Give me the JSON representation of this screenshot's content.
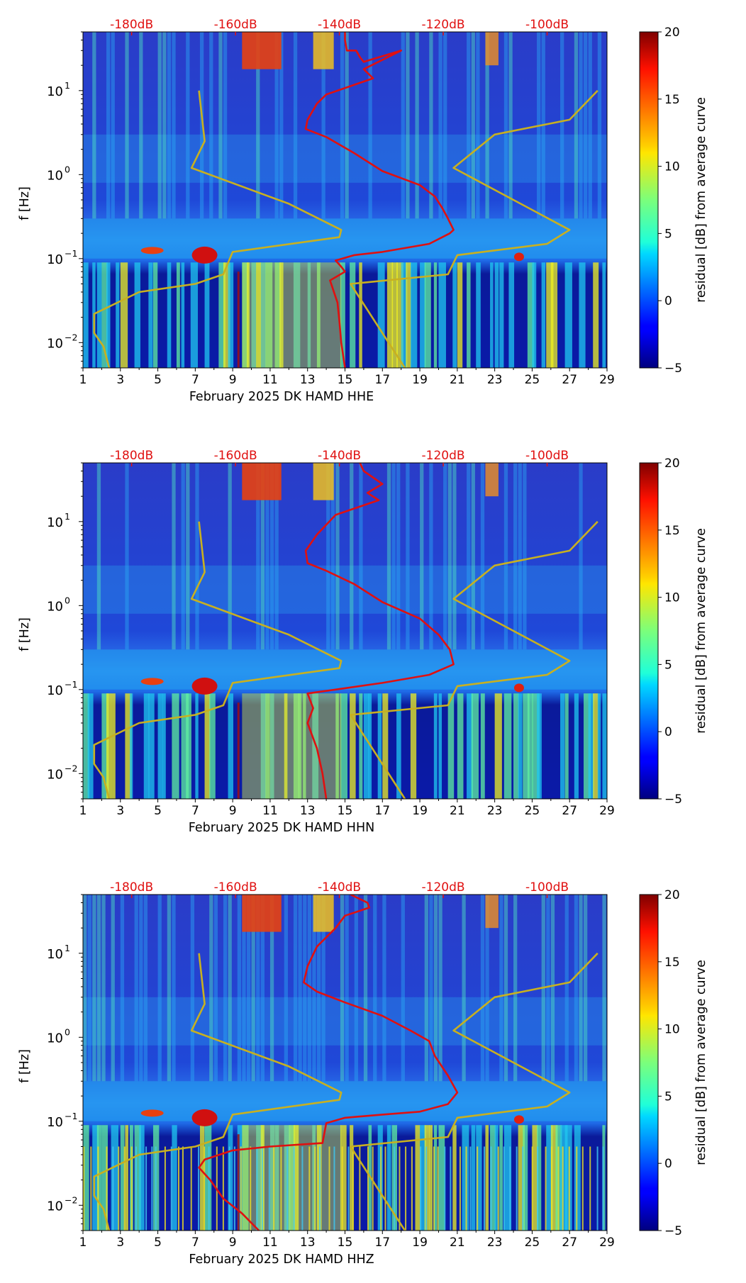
{
  "chart_data": [
    {
      "type": "heatmap",
      "title": "",
      "xlabel": "February 2025 DK HAMD  HHE",
      "ylabel": "f [Hz]",
      "colorbar_label": "residual [dB] from average curve",
      "x_ticks": [
        "1",
        "3",
        "5",
        "7",
        "9",
        "11",
        "13",
        "15",
        "17",
        "19",
        "21",
        "23",
        "25",
        "27",
        "29"
      ],
      "xlim": [
        1,
        29
      ],
      "y_ticks": [
        {
          "base": "10",
          "exp": "1",
          "value": 10
        },
        {
          "base": "10",
          "exp": "0",
          "value": 1
        },
        {
          "base": "10",
          "exp": "−1",
          "value": 0.1
        },
        {
          "base": "10",
          "exp": "−2",
          "value": 0.01
        }
      ],
      "ylim": [
        0.005,
        50
      ],
      "y_scale": "log",
      "colorbar_ticks": [
        "20",
        "15",
        "10",
        "5",
        "0",
        "−5"
      ],
      "colorbar_range": [
        -5,
        20
      ],
      "top_scale_labels": [
        "-180dB",
        "-160dB",
        "-140dB",
        "-120dB",
        "-100dB"
      ],
      "top_scale_values": [
        -180,
        -160,
        -140,
        -120,
        -100
      ],
      "series": [
        {
          "color": "#e01010",
          "x": [
            15.0,
            15.0,
            15.1,
            15.6,
            15.8,
            16.0,
            18.0,
            16.0,
            16.5,
            14.0,
            13.5,
            13.0,
            12.9,
            14.0,
            15.5,
            17.0,
            19.0,
            19.8,
            20.2,
            20.5,
            20.8,
            20.6,
            19.5,
            17.0,
            15.5,
            14.5,
            14.8,
            15.0,
            14.2,
            14.6,
            14.7,
            14.8,
            15.0
          ],
          "y": [
            50,
            40,
            30,
            30,
            25,
            22,
            30,
            18,
            14,
            9,
            7,
            4.5,
            3.5,
            2.8,
            1.8,
            1.1,
            0.75,
            0.55,
            0.4,
            0.3,
            0.22,
            0.2,
            0.15,
            0.12,
            0.11,
            0.095,
            0.08,
            0.07,
            0.055,
            0.03,
            0.018,
            0.01,
            0.005
          ]
        },
        {
          "color": "#c8b020",
          "x": [
            28.5,
            27.0,
            23.0,
            20.8,
            27.0,
            25.8,
            21.0,
            20.5,
            15.3,
            18.2
          ],
          "y": [
            10,
            4.5,
            3.0,
            1.2,
            0.22,
            0.15,
            0.11,
            0.065,
            0.05,
            0.005
          ]
        },
        {
          "color": "#c8b020",
          "x": [
            7.2,
            7.5,
            6.8,
            12.0,
            14.8,
            14.7,
            9.0,
            8.5,
            7.0,
            4.0,
            1.6,
            1.6,
            2.1,
            2.4
          ],
          "y": [
            10,
            2.5,
            1.2,
            0.45,
            0.22,
            0.18,
            0.12,
            0.065,
            0.05,
            0.04,
            0.022,
            0.013,
            0.009,
            0.005
          ]
        }
      ]
    },
    {
      "type": "heatmap",
      "title": "",
      "xlabel": "February 2025 DK HAMD  HHN",
      "ylabel": "f [Hz]",
      "colorbar_label": "residual [dB] from average curve",
      "x_ticks": [
        "1",
        "3",
        "5",
        "7",
        "9",
        "11",
        "13",
        "15",
        "17",
        "19",
        "21",
        "23",
        "25",
        "27",
        "29"
      ],
      "xlim": [
        1,
        29
      ],
      "y_ticks": [
        {
          "base": "10",
          "exp": "1",
          "value": 10
        },
        {
          "base": "10",
          "exp": "0",
          "value": 1
        },
        {
          "base": "10",
          "exp": "−1",
          "value": 0.1
        },
        {
          "base": "10",
          "exp": "−2",
          "value": 0.01
        }
      ],
      "ylim": [
        0.005,
        50
      ],
      "y_scale": "log",
      "colorbar_ticks": [
        "20",
        "15",
        "10",
        "5",
        "0",
        "−5"
      ],
      "colorbar_range": [
        -5,
        20
      ],
      "top_scale_labels": [
        "-180dB",
        "-160dB",
        "-140dB",
        "-120dB",
        "-100dB"
      ],
      "top_scale_values": [
        -180,
        -160,
        -140,
        -120,
        -100
      ],
      "series": [
        {
          "color": "#e01010",
          "x": [
            15.8,
            16.0,
            17.0,
            16.2,
            16.8,
            14.5,
            13.5,
            12.9,
            13.0,
            14.0,
            15.5,
            17.0,
            19.0,
            20.0,
            20.6,
            20.8,
            19.5,
            17.0,
            14.5,
            13.0,
            13.3,
            13.0,
            13.5,
            13.8,
            14.0
          ],
          "y": [
            50,
            40,
            28,
            22,
            18,
            12,
            7,
            4.5,
            3.2,
            2.6,
            1.8,
            1.1,
            0.7,
            0.45,
            0.3,
            0.2,
            0.15,
            0.12,
            0.1,
            0.09,
            0.06,
            0.04,
            0.02,
            0.01,
            0.005
          ]
        },
        {
          "color": "#c8b020",
          "x": [
            28.5,
            27.0,
            23.0,
            20.8,
            27.0,
            25.8,
            21.0,
            20.5,
            15.3,
            18.2
          ],
          "y": [
            10,
            4.5,
            3.0,
            1.2,
            0.22,
            0.15,
            0.11,
            0.065,
            0.05,
            0.005
          ]
        },
        {
          "color": "#c8b020",
          "x": [
            7.2,
            7.5,
            6.8,
            12.0,
            14.8,
            14.7,
            9.0,
            8.5,
            7.0,
            4.0,
            1.6,
            1.6,
            2.1,
            2.4
          ],
          "y": [
            10,
            2.5,
            1.2,
            0.45,
            0.22,
            0.18,
            0.12,
            0.065,
            0.05,
            0.04,
            0.022,
            0.013,
            0.009,
            0.005
          ]
        }
      ]
    },
    {
      "type": "heatmap",
      "title": "",
      "xlabel": "February 2025 DK HAMD  HHZ",
      "ylabel": "f [Hz]",
      "colorbar_label": "residual [dB] from average curve",
      "x_ticks": [
        "1",
        "3",
        "5",
        "7",
        "9",
        "11",
        "13",
        "15",
        "17",
        "19",
        "21",
        "23",
        "25",
        "27",
        "29"
      ],
      "xlim": [
        1,
        29
      ],
      "y_ticks": [
        {
          "base": "10",
          "exp": "1",
          "value": 10
        },
        {
          "base": "10",
          "exp": "0",
          "value": 1
        },
        {
          "base": "10",
          "exp": "−1",
          "value": 0.1
        },
        {
          "base": "10",
          "exp": "−2",
          "value": 0.01
        }
      ],
      "ylim": [
        0.005,
        50
      ],
      "y_scale": "log",
      "colorbar_ticks": [
        "20",
        "15",
        "10",
        "5",
        "0",
        "−5"
      ],
      "colorbar_range": [
        -5,
        20
      ],
      "top_scale_labels": [
        "-180dB",
        "-160dB",
        "-140dB",
        "-120dB",
        "-100dB"
      ],
      "top_scale_values": [
        -180,
        -160,
        -140,
        -120,
        -100
      ],
      "series": [
        {
          "color": "#e01010",
          "x": [
            15.3,
            16.2,
            16.3,
            15.0,
            14.5,
            13.5,
            13.0,
            12.8,
            13.5,
            15.0,
            17.0,
            18.5,
            19.5,
            19.8,
            20.5,
            21.0,
            20.5,
            19.0,
            17.0,
            15.0,
            14.0,
            13.8,
            11.0,
            9.0,
            7.5,
            7.2,
            7.8,
            8.5,
            9.5,
            10.4
          ],
          "y": [
            50,
            40,
            35,
            28,
            20,
            12,
            7,
            4.5,
            3.5,
            2.6,
            1.8,
            1.2,
            0.9,
            0.6,
            0.35,
            0.22,
            0.16,
            0.13,
            0.12,
            0.11,
            0.095,
            0.055,
            0.05,
            0.045,
            0.035,
            0.028,
            0.02,
            0.012,
            0.008,
            0.005
          ]
        },
        {
          "color": "#c8b020",
          "x": [
            28.5,
            27.0,
            23.0,
            20.8,
            27.0,
            25.8,
            21.0,
            20.5,
            15.3,
            18.2
          ],
          "y": [
            10,
            4.5,
            3.0,
            1.2,
            0.22,
            0.15,
            0.11,
            0.065,
            0.05,
            0.005
          ]
        },
        {
          "color": "#c8b020",
          "x": [
            7.2,
            7.5,
            6.8,
            12.0,
            14.8,
            14.7,
            9.0,
            8.5,
            7.0,
            4.0,
            1.6,
            1.6,
            2.1,
            2.4
          ],
          "y": [
            10,
            2.5,
            1.2,
            0.45,
            0.22,
            0.18,
            0.12,
            0.065,
            0.05,
            0.04,
            0.022,
            0.013,
            0.009,
            0.005
          ]
        }
      ]
    }
  ]
}
